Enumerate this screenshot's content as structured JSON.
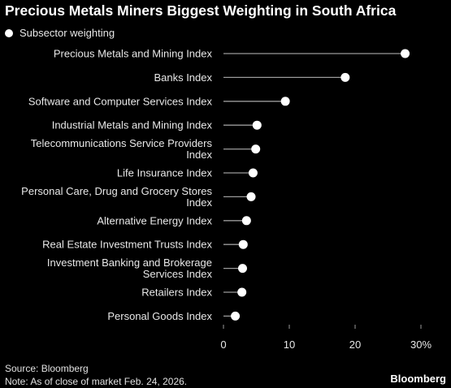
{
  "title": "Precious Metals Miners Biggest Weighting in South Africa",
  "legend": {
    "label": "Subsector weighting"
  },
  "chart_data": {
    "type": "scatter",
    "orientation": "horizontal",
    "categories": [
      [
        "Precious Metals and Mining Index"
      ],
      [
        "Banks Index"
      ],
      [
        "Software and Computer Services Index"
      ],
      [
        "Industrial Metals and Mining Index"
      ],
      [
        "Telecommunications Service Providers",
        "Index"
      ],
      [
        "Life Insurance Index"
      ],
      [
        "Personal Care, Drug and Grocery Stores",
        "Index"
      ],
      [
        "Alternative Energy Index"
      ],
      [
        "Real Estate Investment Trusts Index"
      ],
      [
        "Investment Banking and Brokerage",
        "Services Index"
      ],
      [
        "Retailers Index"
      ],
      [
        "Personal Goods Index"
      ]
    ],
    "series": [
      {
        "name": "Subsector weighting",
        "values": [
          27.6,
          18.5,
          9.4,
          5.1,
          4.9,
          4.5,
          4.2,
          3.5,
          3.0,
          2.9,
          2.8,
          1.8
        ]
      }
    ],
    "xlim": [
      0,
      30
    ],
    "xticks": [
      0,
      10,
      20,
      30
    ],
    "xtick_labels": [
      "0",
      "10",
      "20",
      "30%"
    ],
    "colors": {
      "marker": "#ffffff",
      "stem": "#9a9a9a",
      "axis": "#9a9a9a"
    },
    "grid": false
  },
  "footer": {
    "source": "Source: Bloomberg",
    "note": "Note: As of close of market Feb. 24, 2026."
  },
  "brand": "Bloomberg"
}
